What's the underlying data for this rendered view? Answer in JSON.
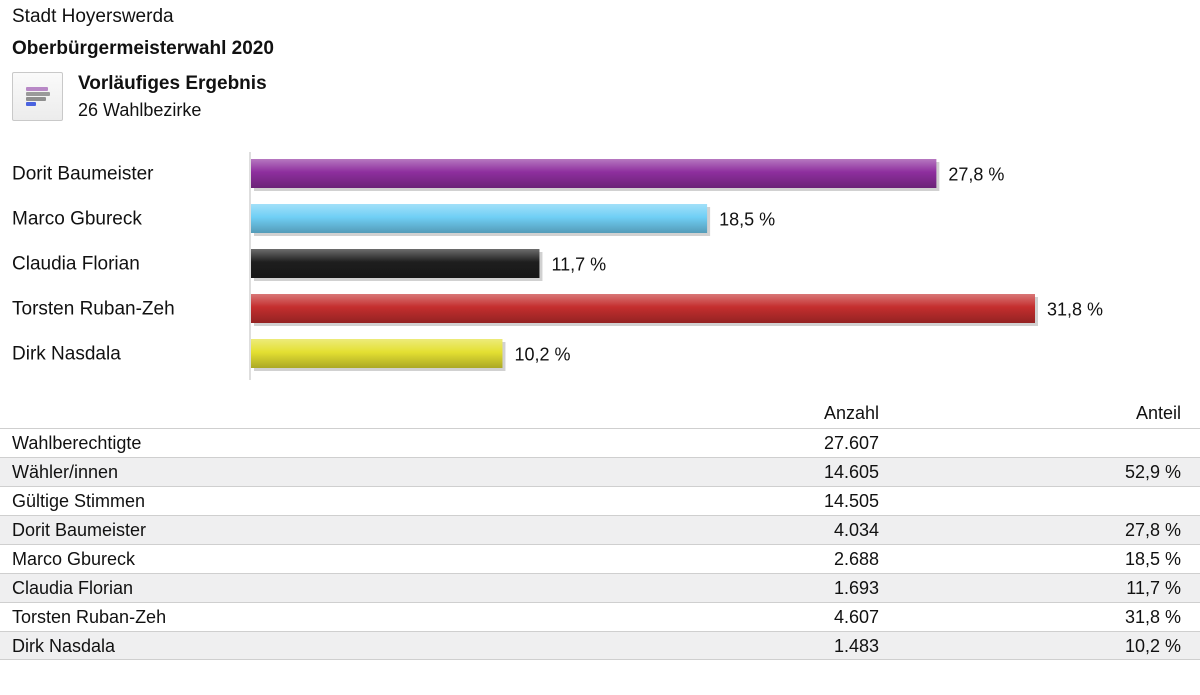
{
  "header": {
    "city": "Stadt Hoyerswerda",
    "title": "Oberbürgermeisterwahl 2020",
    "result_title": "Vorläufiges Ergebnis",
    "result_subtitle": "26 Wahlbezirke",
    "icon": "bar-chart-icon"
  },
  "chart_data": {
    "type": "bar",
    "orientation": "horizontal",
    "categories": [
      "Dorit Baumeister",
      "Marco Gbureck",
      "Claudia Florian",
      "Torsten Ruban-Zeh",
      "Dirk Nasdala"
    ],
    "values": [
      27.8,
      18.5,
      11.7,
      31.8,
      10.2
    ],
    "value_labels": [
      "27,8 %",
      "18,5 %",
      "11,7 %",
      "31,8 %",
      "10,2 %"
    ],
    "colors": [
      "#8e2f9e",
      "#70cff5",
      "#1e1e1e",
      "#c42e2e",
      "#e4e032"
    ],
    "unit": "%",
    "xlim": [
      0,
      31.8
    ]
  },
  "table": {
    "headers": {
      "label": "",
      "anzahl": "Anzahl",
      "anteil": "Anteil"
    },
    "rows": [
      {
        "label": "Wahlberechtigte",
        "anzahl": "27.607",
        "anteil": ""
      },
      {
        "label": "Wähler/innen",
        "anzahl": "14.605",
        "anteil": "52,9 %"
      },
      {
        "label": "Gültige Stimmen",
        "anzahl": "14.505",
        "anteil": ""
      },
      {
        "label": "Dorit Baumeister",
        "anzahl": "4.034",
        "anteil": "27,8 %"
      },
      {
        "label": "Marco Gbureck",
        "anzahl": "2.688",
        "anteil": "18,5 %"
      },
      {
        "label": "Claudia Florian",
        "anzahl": "1.693",
        "anteil": "11,7 %"
      },
      {
        "label": "Torsten Ruban-Zeh",
        "anzahl": "4.607",
        "anteil": "31,8 %"
      },
      {
        "label": "Dirk Nasdala",
        "anzahl": "1.483",
        "anteil": "10,2 %"
      }
    ]
  }
}
